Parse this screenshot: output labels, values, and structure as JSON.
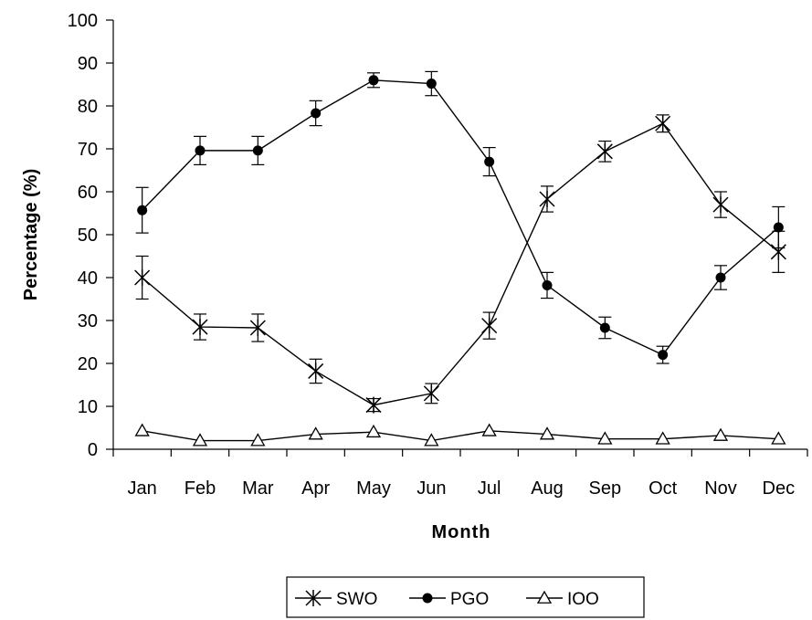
{
  "chart_data": {
    "type": "line",
    "xlabel": "Month",
    "ylabel": "Percentage (%)",
    "ylim": [
      0,
      100
    ],
    "yticks": [
      0,
      10,
      20,
      30,
      40,
      50,
      60,
      70,
      80,
      90,
      100
    ],
    "categories": [
      "Jan",
      "Feb",
      "Mar",
      "Apr",
      "May",
      "Jun",
      "Jul",
      "Aug",
      "Sep",
      "Oct",
      "Nov",
      "Dec"
    ],
    "grid": false,
    "legend_position": "bottom",
    "series": [
      {
        "name": "SWO",
        "marker": "star-cross",
        "values": [
          40,
          28.5,
          28.3,
          18.2,
          10.3,
          13,
          28.8,
          58.3,
          69.4,
          75.9,
          57,
          46
        ],
        "error": [
          5,
          3,
          3.2,
          2.8,
          1.5,
          2.3,
          3.1,
          3,
          2.4,
          2,
          3,
          4.8
        ]
      },
      {
        "name": "PGO",
        "marker": "filled-circle",
        "values": [
          55.7,
          69.6,
          69.6,
          78.3,
          86,
          85.2,
          67,
          38.2,
          28.3,
          22,
          40,
          51.7
        ],
        "error": [
          5.3,
          3.3,
          3.3,
          2.9,
          1.7,
          2.8,
          3.3,
          3,
          2.5,
          2,
          2.8,
          4.8
        ]
      },
      {
        "name": "IOO",
        "marker": "open-triangle",
        "values": [
          4.3,
          2,
          2,
          3.5,
          4,
          2,
          4.3,
          3.5,
          2.4,
          2.4,
          3.2,
          2.4
        ],
        "error": [
          0,
          0,
          0,
          0,
          0,
          0,
          0,
          0,
          0,
          0,
          0,
          0
        ]
      }
    ]
  }
}
